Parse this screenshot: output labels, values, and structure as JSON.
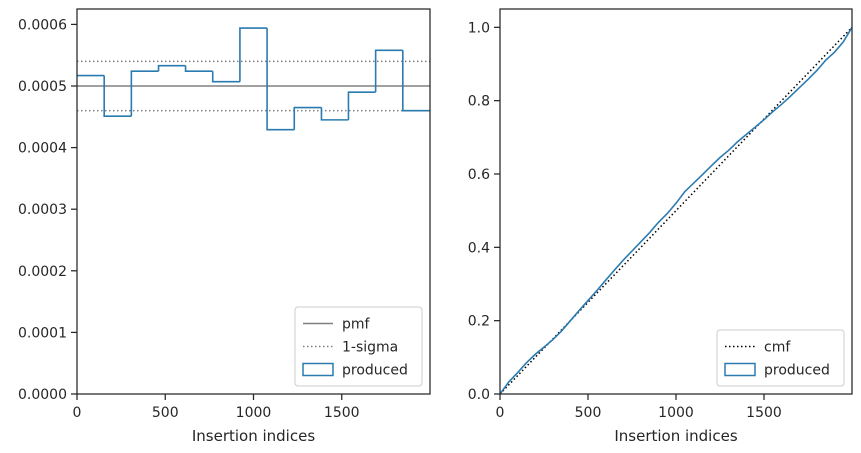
{
  "colors": {
    "pmf": "#808080",
    "sigma": "#808080",
    "produced": "#2b7bb0",
    "cmf": "#000000",
    "frame": "#262626"
  },
  "chart_data": [
    {
      "type": "step",
      "xlabel": "Insertion indices",
      "ylabel": "",
      "xlim": [
        0,
        2000
      ],
      "ylim": [
        0,
        0.000625
      ],
      "xticks": [
        0,
        500,
        1000,
        1500
      ],
      "xtick_labels": [
        "0",
        "500",
        "1000",
        "1500"
      ],
      "yticks": [
        0,
        0.0001,
        0.0002,
        0.0003,
        0.0004,
        0.0005,
        0.0006
      ],
      "ytick_labels": [
        "0.0000",
        "0.0001",
        "0.0002",
        "0.0003",
        "0.0004",
        "0.0005",
        "0.0006"
      ],
      "grid": false,
      "legend_position": "lower-right",
      "pmf": 0.0005,
      "sigma_lower": 0.00046,
      "sigma_upper": 0.00054,
      "legend": [
        {
          "key": "pmf",
          "label": "pmf",
          "style": "solid-line"
        },
        {
          "key": "sigma",
          "label": "1-sigma",
          "style": "dotted-line"
        },
        {
          "key": "produced",
          "label": "produced",
          "style": "box"
        }
      ],
      "bin_edges": [
        0,
        154,
        308,
        462,
        615,
        769,
        923,
        1077,
        1231,
        1385,
        1538,
        1692,
        1846,
        2000
      ],
      "values": [
        0.000517,
        0.000451,
        0.000524,
        0.000533,
        0.000524,
        0.000507,
        0.000594,
        0.000429,
        0.000465,
        0.000445,
        0.00049,
        0.000558,
        0.00046
      ]
    },
    {
      "type": "line",
      "xlabel": "Insertion indices",
      "ylabel": "",
      "xlim": [
        0,
        2000
      ],
      "ylim": [
        0,
        1.05
      ],
      "xticks": [
        0,
        500,
        1000,
        1500
      ],
      "xtick_labels": [
        "0",
        "500",
        "1000",
        "1500"
      ],
      "yticks": [
        0,
        0.2,
        0.4,
        0.6,
        0.8,
        1.0
      ],
      "ytick_labels": [
        "0.0",
        "0.2",
        "0.4",
        "0.6",
        "0.8",
        "1.0"
      ],
      "grid": false,
      "legend_position": "lower-right",
      "legend": [
        {
          "key": "cmf",
          "label": "cmf",
          "style": "dotted-line"
        },
        {
          "key": "produced",
          "label": "produced",
          "style": "box"
        }
      ],
      "cmf": {
        "x": [
          0,
          2000
        ],
        "y": [
          0,
          1.0
        ]
      },
      "produced": {
        "x": [
          0,
          50,
          100,
          150,
          200,
          250,
          300,
          350,
          400,
          450,
          500,
          550,
          600,
          650,
          700,
          750,
          800,
          850,
          900,
          950,
          1000,
          1050,
          1100,
          1150,
          1200,
          1250,
          1300,
          1350,
          1400,
          1450,
          1500,
          1550,
          1600,
          1650,
          1700,
          1750,
          1800,
          1850,
          1900,
          1950,
          2000
        ],
        "y": [
          0,
          0.033,
          0.058,
          0.085,
          0.108,
          0.128,
          0.148,
          0.172,
          0.2,
          0.228,
          0.255,
          0.282,
          0.31,
          0.338,
          0.365,
          0.39,
          0.415,
          0.44,
          0.468,
          0.492,
          0.52,
          0.552,
          0.575,
          0.598,
          0.622,
          0.645,
          0.665,
          0.688,
          0.708,
          0.728,
          0.748,
          0.77,
          0.79,
          0.812,
          0.835,
          0.858,
          0.882,
          0.91,
          0.932,
          0.96,
          1.0
        ]
      }
    }
  ]
}
